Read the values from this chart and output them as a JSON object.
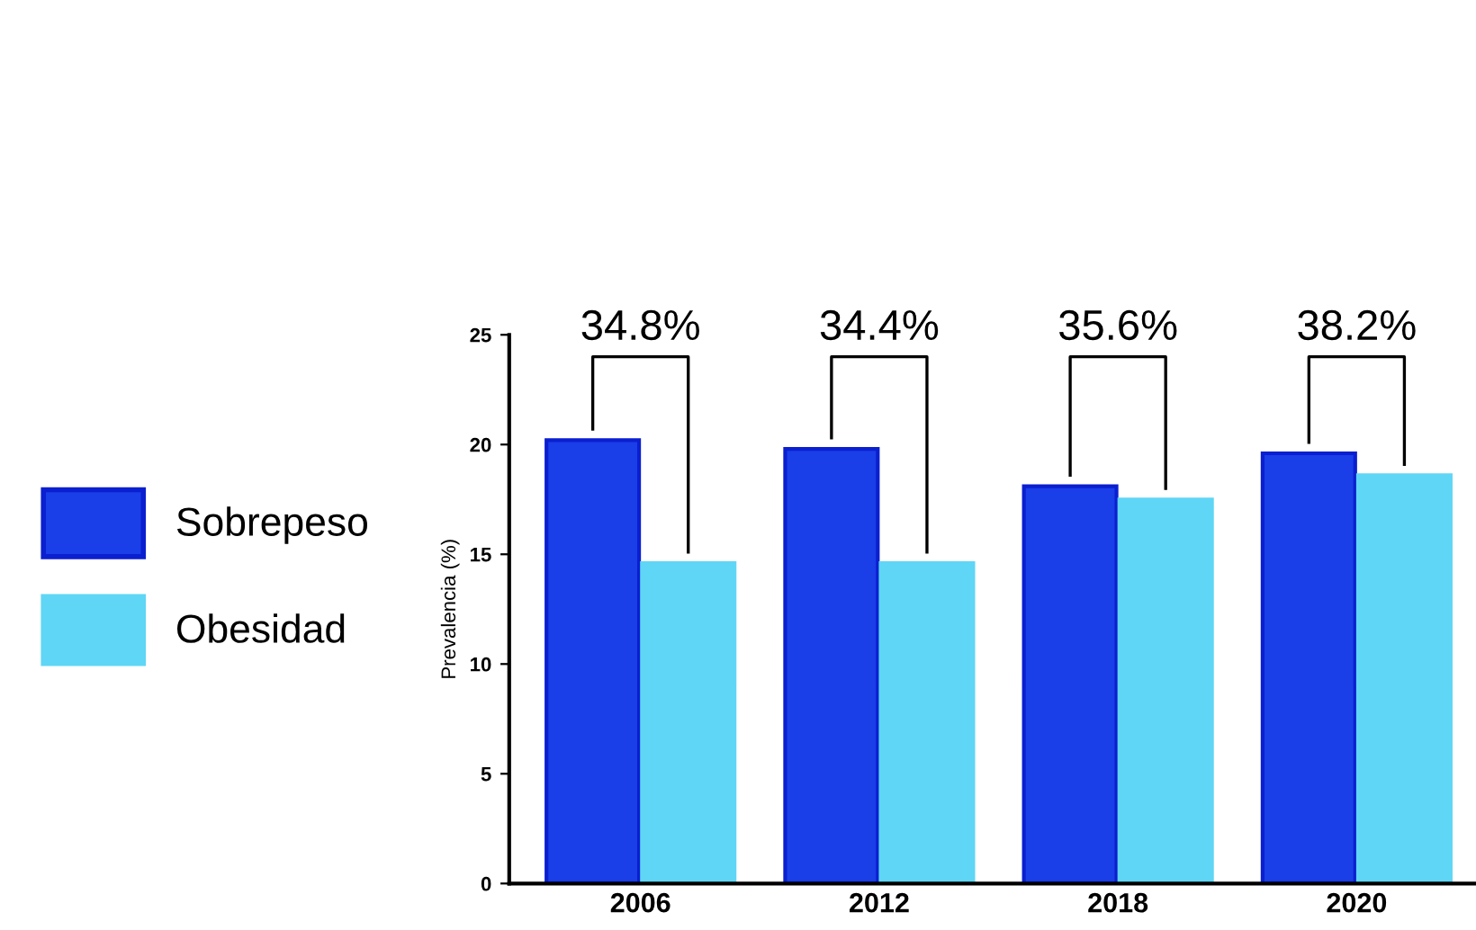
{
  "chart_data": {
    "type": "bar",
    "ylabel": "Prevalencia (%)",
    "categories": [
      "2006",
      "2012",
      "2018",
      "2020"
    ],
    "series": [
      {
        "name": "Sobrepeso",
        "color": "#1a3ee8",
        "values": [
          20.2,
          19.8,
          18.1,
          19.6
        ]
      },
      {
        "name": "Obesidad",
        "color": "#5fd6f5",
        "values": [
          14.6,
          14.6,
          17.5,
          18.6
        ]
      }
    ],
    "annotations": [
      "34.8%",
      "34.4%",
      "35.6%",
      "38.2%"
    ],
    "ylim": [
      0,
      25
    ],
    "yticks": [
      0,
      5,
      10,
      15,
      20,
      25
    ],
    "grid": false,
    "legend": "left"
  }
}
